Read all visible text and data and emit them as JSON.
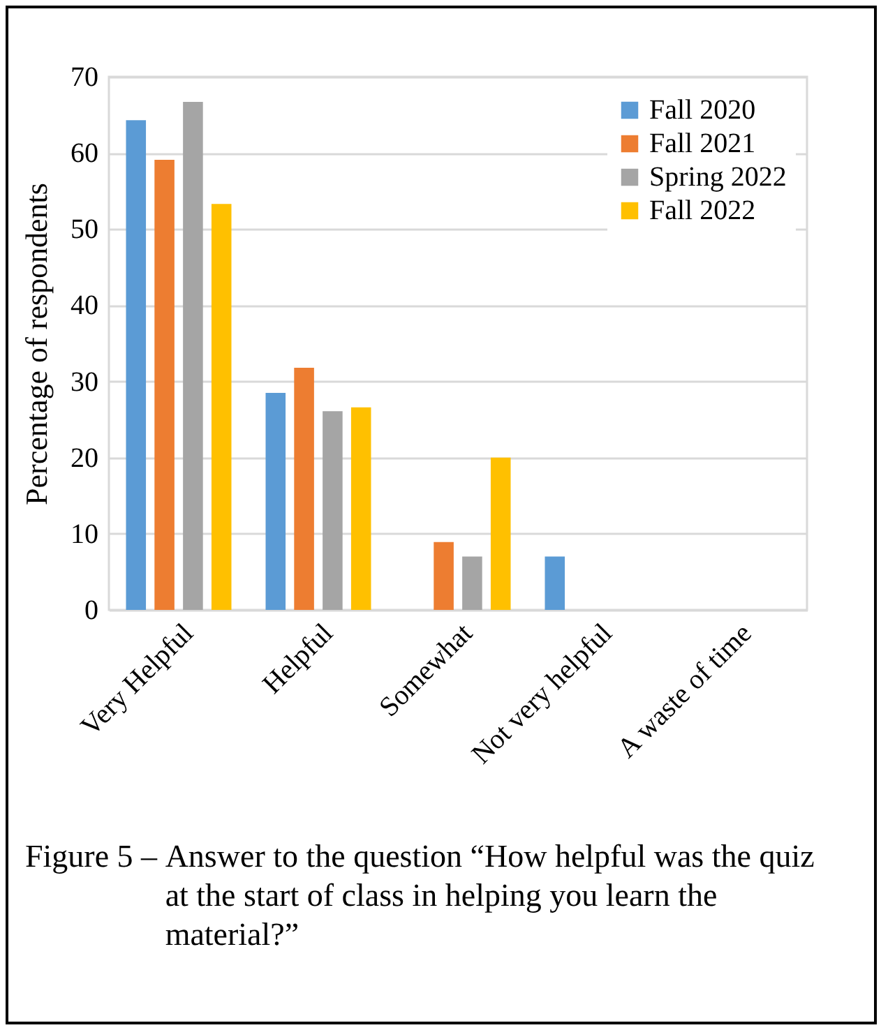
{
  "chart_data": {
    "type": "bar",
    "ylabel": "Percentage of respondents",
    "categories": [
      "Very Helpful",
      "Helpful",
      "Somewhat",
      "Not very helpful",
      "A waste of time"
    ],
    "series": [
      {
        "name": "Fall 2020",
        "color": "#5b9bd5",
        "values": [
          64.3,
          28.5,
          0,
          7.0,
          0
        ]
      },
      {
        "name": "Fall 2021",
        "color": "#ed7d31",
        "values": [
          59.1,
          31.8,
          8.9,
          0,
          0
        ]
      },
      {
        "name": "Spring 2022",
        "color": "#a5a5a5",
        "values": [
          66.7,
          26.1,
          7.0,
          0,
          0
        ]
      },
      {
        "name": "Fall 2022",
        "color": "#ffc000",
        "values": [
          53.3,
          26.6,
          20,
          0,
          0
        ]
      }
    ],
    "ylim": [
      0,
      70
    ],
    "yticks": [
      0,
      10,
      20,
      30,
      40,
      50,
      60,
      70
    ],
    "grid": "y",
    "legend": "top right",
    "annotations": [
      "Figure 5 – Answer to the question “How helpful was the quiz at the start of class in helping you learn the material?”"
    ]
  }
}
